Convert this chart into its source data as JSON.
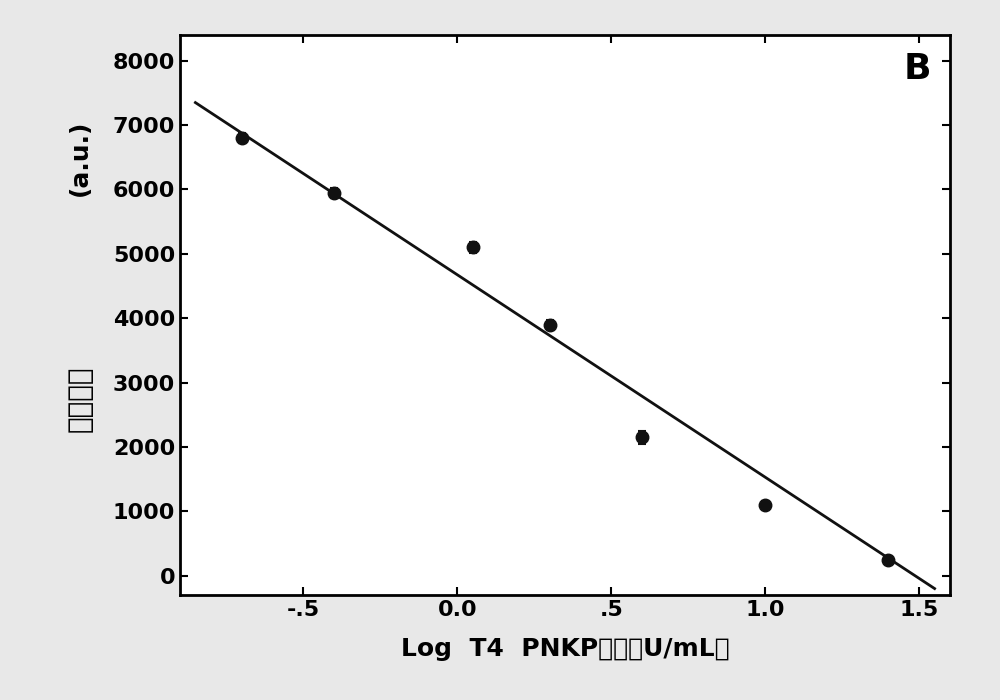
{
  "x_data": [
    -0.7,
    -0.4,
    0.05,
    0.3,
    0.6,
    1.0,
    1.4
  ],
  "y_data": [
    6800,
    5950,
    5100,
    3900,
    2150,
    1100,
    250
  ],
  "y_err": [
    80,
    80,
    80,
    80,
    100,
    60,
    60
  ],
  "fit_x": [
    -0.85,
    1.55
  ],
  "fit_y": [
    7350,
    -200
  ],
  "xlabel": "Log  T4  PNKP浓度（U/mL）",
  "ylabel_latin": "(a.u.)",
  "ylabel_chinese": "荧光强度",
  "label_B": "B",
  "xlim": [
    -0.9,
    1.6
  ],
  "ylim": [
    -300,
    8400
  ],
  "xticks": [
    -0.5,
    0.0,
    0.5,
    1.0,
    1.5
  ],
  "xtick_labels": [
    "-.5",
    "0.0",
    ".5",
    "1.0",
    "1.5"
  ],
  "yticks": [
    0,
    1000,
    2000,
    3000,
    4000,
    5000,
    6000,
    7000,
    8000
  ],
  "marker_color": "#111111",
  "line_color": "#111111",
  "background_color": "#e8e8e8",
  "plot_bg_color": "#ffffff",
  "label_fontsize": 18,
  "tick_fontsize": 16,
  "ylabel_fontsize": 20,
  "B_fontsize": 26
}
